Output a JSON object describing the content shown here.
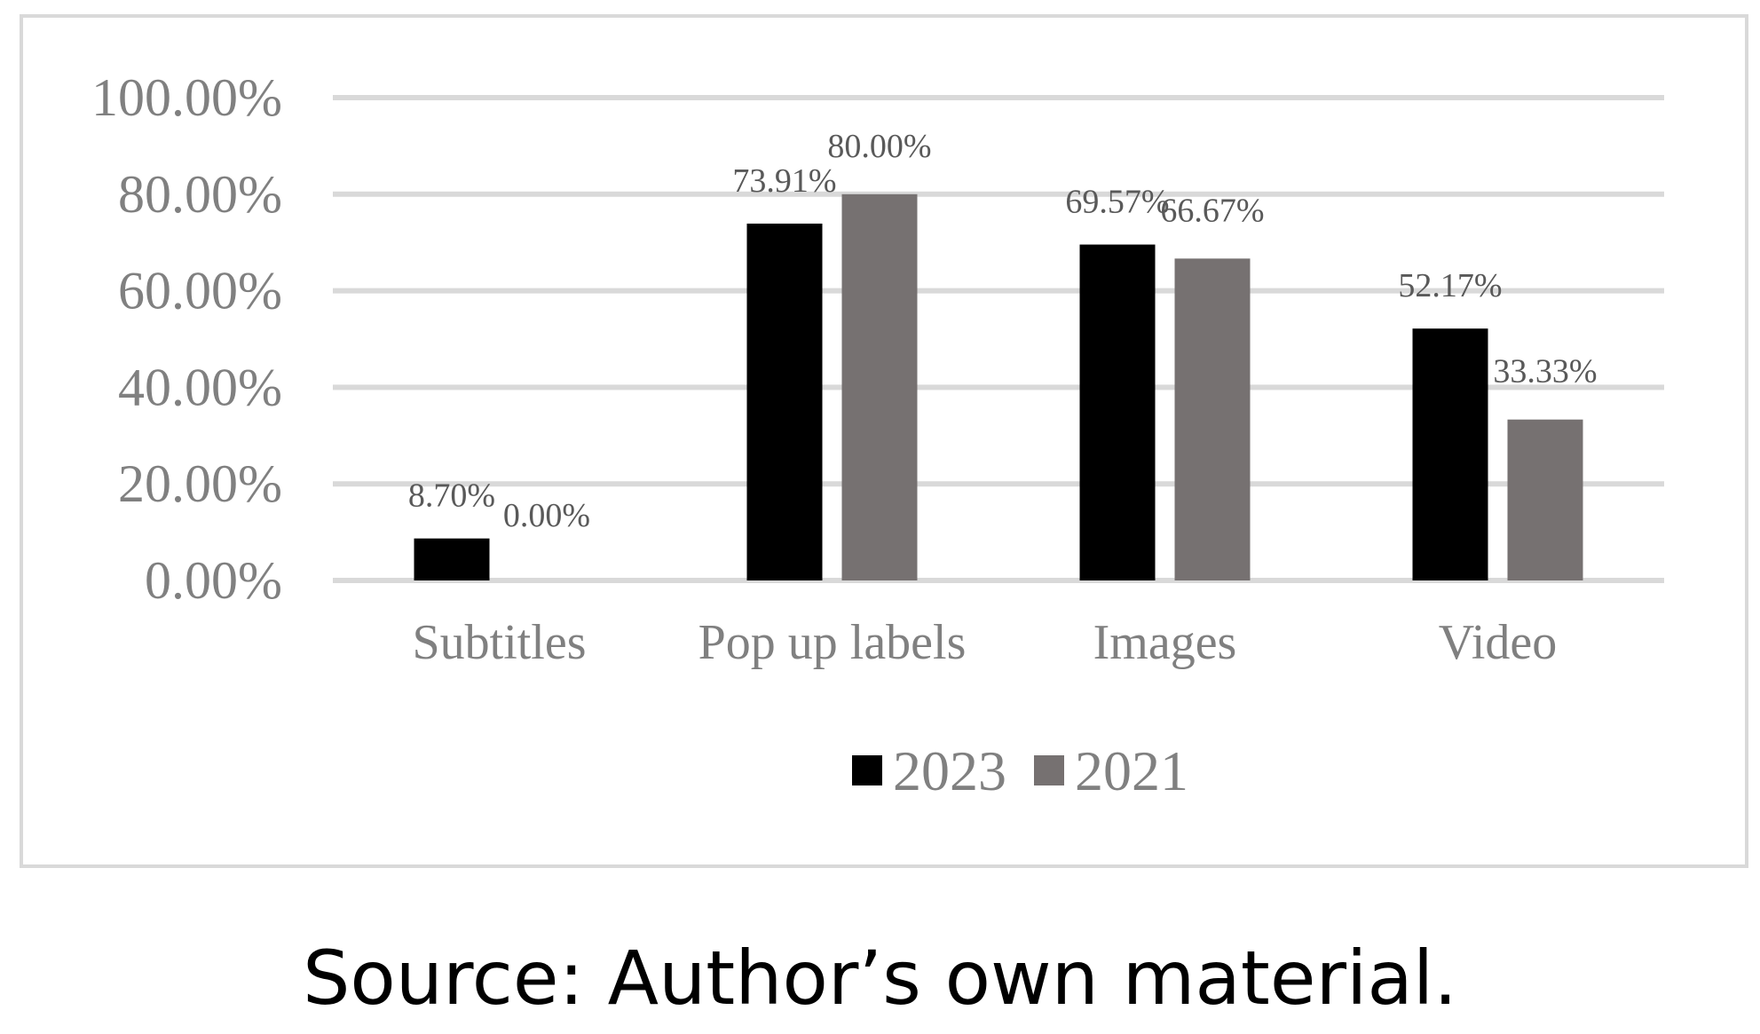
{
  "chart_data": {
    "type": "bar",
    "title": "",
    "xlabel": "",
    "ylabel": "",
    "categories": [
      "Subtitles",
      "Pop up labels",
      "Images",
      "Video"
    ],
    "series": [
      {
        "name": "2023",
        "color": "#000000",
        "values": [
          8.7,
          73.91,
          69.57,
          52.17
        ],
        "labels": [
          "8.70%",
          "73.91%",
          "69.57%",
          "52.17%"
        ]
      },
      {
        "name": "2021",
        "color": "#767171",
        "values": [
          0.0,
          80.0,
          66.67,
          33.33
        ],
        "labels": [
          "0.00%",
          "80.00%",
          "66.67%",
          "33.33%"
        ]
      }
    ],
    "ylim": [
      0,
      100
    ],
    "yticks": [
      0,
      20,
      40,
      60,
      80,
      100
    ],
    "ytick_labels": [
      "0.00%",
      "20.00%",
      "40.00%",
      "60.00%",
      "80.00%",
      "100.00%"
    ],
    "grid": true,
    "gridline_color": "#d9d9d9",
    "legend_position": "bottom"
  },
  "caption": "Source: Author’s own material."
}
